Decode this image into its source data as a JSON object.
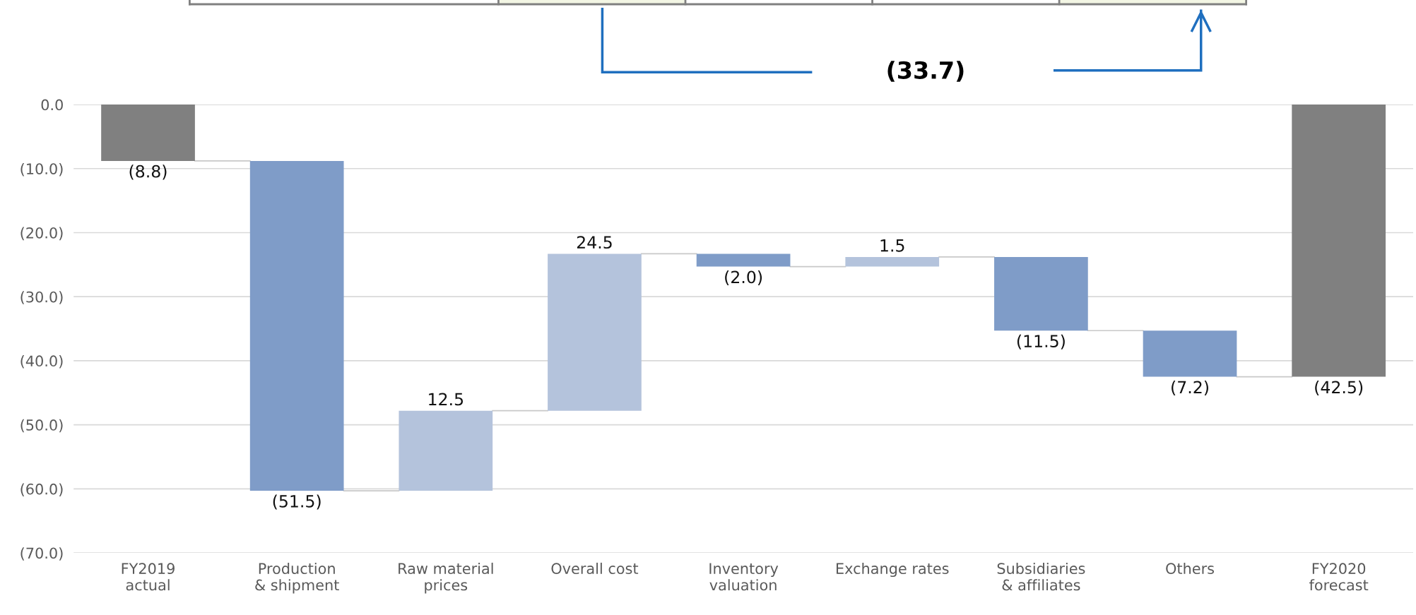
{
  "chart_data": {
    "type": "bar",
    "categories": [
      "FY2019\nactual",
      "Production\n& shipment",
      "Raw material\nprices",
      "Overall cost",
      "Inventory\nvaluation",
      "Exchange rates",
      "Subsidiaries\n& affiliates",
      "Others",
      "FY2020\nforecast"
    ],
    "values": [
      -8.8,
      -51.5,
      12.5,
      24.5,
      -2.0,
      1.5,
      -11.5,
      -7.2,
      -42.5
    ],
    "base": [
      0,
      -8.8,
      -60.3,
      -47.8,
      -23.3,
      -25.3,
      -23.8,
      -35.3,
      0
    ],
    "colors": [
      "#808080",
      "#7f9cc8",
      "#b4c3dc",
      "#b4c3dc",
      "#7f9cc8",
      "#b4c3dc",
      "#7f9cc8",
      "#7f9cc8",
      "#808080"
    ],
    "value_labels": [
      "(8.8)",
      "(51.5)",
      "12.5",
      "24.5",
      "(2.0)",
      "1.5",
      "(11.5)",
      "(7.2)",
      "(42.5)"
    ],
    "ylim": [
      -70,
      0
    ],
    "yticks": [
      {
        "value": 0,
        "label": "0.0"
      },
      {
        "value": -10,
        "label": "(10.0)"
      },
      {
        "value": -20,
        "label": "(20.0)"
      },
      {
        "value": -30,
        "label": "(30.0)"
      },
      {
        "value": -40,
        "label": "(40.0)"
      },
      {
        "value": -50,
        "label": "(50.0)"
      },
      {
        "value": -60,
        "label": "(60.0)"
      },
      {
        "value": -70,
        "label": "(70.0)"
      }
    ],
    "grid": "y",
    "legend": false,
    "annotations": [
      "(33.7)"
    ]
  }
}
